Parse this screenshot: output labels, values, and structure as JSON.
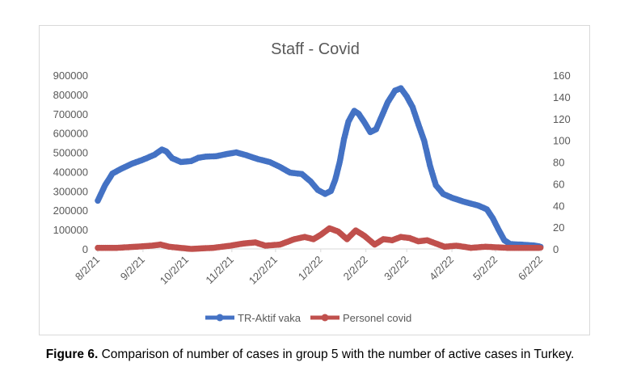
{
  "figure": {
    "caption_label": "Figure 6.",
    "caption_text": " Comparison of number of cases in group 5 with the number of active cases in Turkey."
  },
  "chart_data": {
    "type": "line",
    "title": "Staff - Covid",
    "x_type": "date",
    "x_tick_labels": [
      "8/2/21",
      "9/2/21",
      "10/2/21",
      "11/2/21",
      "12/2/21",
      "1/2/22",
      "2/2/22",
      "3/2/22",
      "4/2/22",
      "5/2/22",
      "6/2/22"
    ],
    "xlim": [
      "2021-08-02",
      "2022-06-02"
    ],
    "y_left": {
      "ylim": [
        0,
        900000
      ],
      "ticks": [
        "0",
        "100000",
        "200000",
        "300000",
        "400000",
        "500000",
        "600000",
        "700000",
        "800000",
        "900000"
      ]
    },
    "y_right": {
      "ylim": [
        0,
        160
      ],
      "ticks": [
        "0",
        "20",
        "40",
        "60",
        "80",
        "100",
        "120",
        "140",
        "160"
      ]
    },
    "grid": false,
    "legend_position": "bottom",
    "series": [
      {
        "name": "TR-Aktif vaka",
        "axis": "left",
        "color": "#4472c4",
        "points": [
          [
            "2021-08-02",
            250000
          ],
          [
            "2021-08-07",
            330000
          ],
          [
            "2021-08-12",
            390000
          ],
          [
            "2021-08-18",
            415000
          ],
          [
            "2021-08-25",
            440000
          ],
          [
            "2021-09-02",
            462000
          ],
          [
            "2021-09-10",
            488000
          ],
          [
            "2021-09-15",
            515000
          ],
          [
            "2021-09-18",
            505000
          ],
          [
            "2021-09-22",
            470000
          ],
          [
            "2021-09-28",
            450000
          ],
          [
            "2021-10-05",
            455000
          ],
          [
            "2021-10-10",
            472000
          ],
          [
            "2021-10-15",
            478000
          ],
          [
            "2021-10-22",
            480000
          ],
          [
            "2021-11-01",
            495000
          ],
          [
            "2021-11-05",
            500000
          ],
          [
            "2021-11-12",
            485000
          ],
          [
            "2021-11-20",
            465000
          ],
          [
            "2021-11-28",
            450000
          ],
          [
            "2021-12-05",
            425000
          ],
          [
            "2021-12-12",
            395000
          ],
          [
            "2021-12-20",
            388000
          ],
          [
            "2021-12-26",
            350000
          ],
          [
            "2021-12-31",
            305000
          ],
          [
            "2022-01-05",
            285000
          ],
          [
            "2022-01-09",
            300000
          ],
          [
            "2022-01-12",
            360000
          ],
          [
            "2022-01-15",
            450000
          ],
          [
            "2022-01-18",
            570000
          ],
          [
            "2022-01-21",
            660000
          ],
          [
            "2022-01-25",
            715000
          ],
          [
            "2022-01-28",
            700000
          ],
          [
            "2022-02-01",
            655000
          ],
          [
            "2022-02-05",
            605000
          ],
          [
            "2022-02-09",
            620000
          ],
          [
            "2022-02-13",
            690000
          ],
          [
            "2022-02-17",
            760000
          ],
          [
            "2022-02-22",
            820000
          ],
          [
            "2022-02-26",
            832000
          ],
          [
            "2022-03-02",
            790000
          ],
          [
            "2022-03-06",
            735000
          ],
          [
            "2022-03-10",
            645000
          ],
          [
            "2022-03-14",
            560000
          ],
          [
            "2022-03-18",
            430000
          ],
          [
            "2022-03-22",
            330000
          ],
          [
            "2022-03-27",
            285000
          ],
          [
            "2022-04-02",
            265000
          ],
          [
            "2022-04-10",
            245000
          ],
          [
            "2022-04-20",
            225000
          ],
          [
            "2022-04-26",
            205000
          ],
          [
            "2022-04-30",
            160000
          ],
          [
            "2022-05-04",
            100000
          ],
          [
            "2022-05-08",
            45000
          ],
          [
            "2022-05-12",
            25000
          ],
          [
            "2022-05-20",
            22000
          ],
          [
            "2022-05-28",
            18000
          ],
          [
            "2022-06-02",
            12000
          ]
        ]
      },
      {
        "name": "Personel covid",
        "axis": "right",
        "color": "#c0504d",
        "points": [
          [
            "2021-08-02",
            1
          ],
          [
            "2021-08-15",
            1
          ],
          [
            "2021-08-28",
            2
          ],
          [
            "2021-09-08",
            3
          ],
          [
            "2021-09-14",
            4
          ],
          [
            "2021-09-20",
            2
          ],
          [
            "2021-10-05",
            0
          ],
          [
            "2021-10-20",
            1
          ],
          [
            "2021-11-01",
            3
          ],
          [
            "2021-11-10",
            5
          ],
          [
            "2021-11-18",
            6
          ],
          [
            "2021-11-25",
            3
          ],
          [
            "2021-12-05",
            4
          ],
          [
            "2021-12-15",
            9
          ],
          [
            "2021-12-22",
            11
          ],
          [
            "2021-12-28",
            9
          ],
          [
            "2022-01-02",
            13
          ],
          [
            "2022-01-08",
            19
          ],
          [
            "2022-01-14",
            16
          ],
          [
            "2022-01-20",
            9
          ],
          [
            "2022-01-26",
            17
          ],
          [
            "2022-02-01",
            12
          ],
          [
            "2022-02-08",
            4
          ],
          [
            "2022-02-14",
            9
          ],
          [
            "2022-02-20",
            8
          ],
          [
            "2022-02-26",
            11
          ],
          [
            "2022-03-04",
            10
          ],
          [
            "2022-03-10",
            7
          ],
          [
            "2022-03-16",
            8
          ],
          [
            "2022-03-22",
            5
          ],
          [
            "2022-03-28",
            2
          ],
          [
            "2022-04-05",
            3
          ],
          [
            "2022-04-15",
            1
          ],
          [
            "2022-04-25",
            2
          ],
          [
            "2022-05-10",
            1
          ],
          [
            "2022-05-25",
            1
          ],
          [
            "2022-06-02",
            1
          ]
        ]
      }
    ]
  }
}
